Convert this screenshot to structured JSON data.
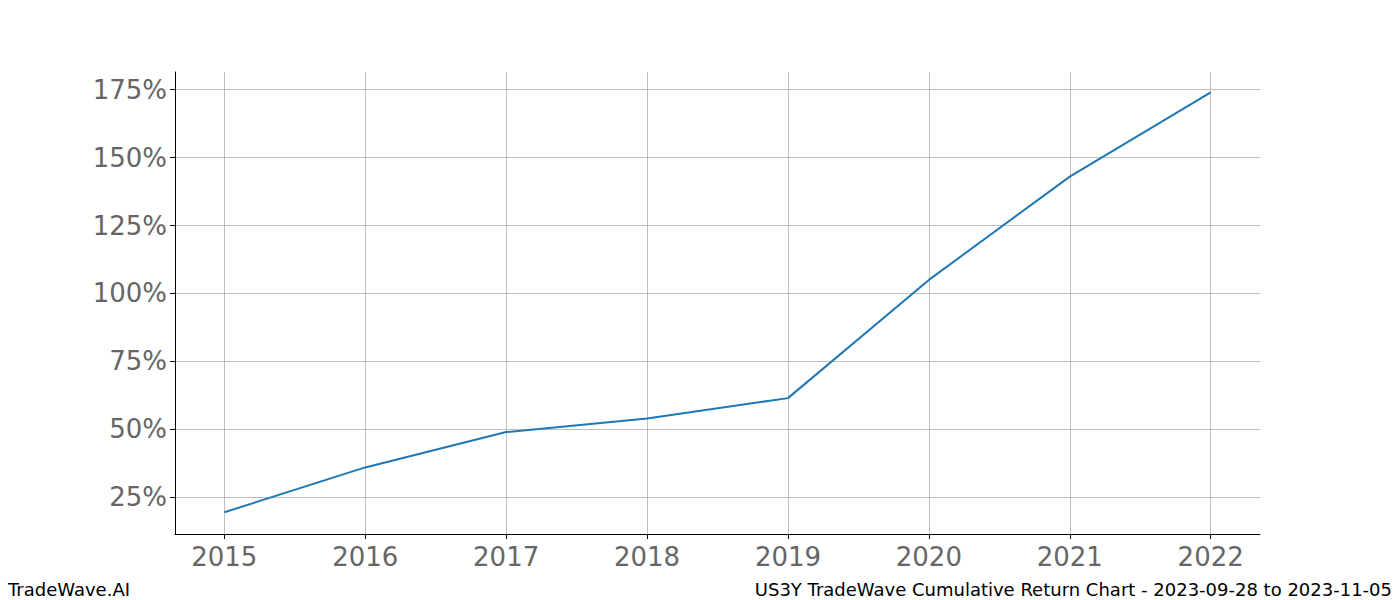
{
  "chart_data": {
    "type": "line",
    "x": [
      2015,
      2016,
      2017,
      2018,
      2019,
      2020,
      2021,
      2022
    ],
    "values": [
      19.5,
      36,
      49,
      54,
      61.5,
      105,
      143,
      174
    ],
    "color": "#1f77b4",
    "xlim": [
      2014.65,
      2022.35
    ],
    "xticks": [
      2015,
      2016,
      2017,
      2018,
      2019,
      2020,
      2021,
      2022
    ],
    "ylim": [
      11.5,
      181.5
    ],
    "yticks": [
      {
        "value": 25,
        "label": "25%"
      },
      {
        "value": 50,
        "label": "50%"
      },
      {
        "value": 75,
        "label": "75%"
      },
      {
        "value": 100,
        "label": "100%"
      },
      {
        "value": 125,
        "label": "125%"
      },
      {
        "value": 150,
        "label": "150%"
      },
      {
        "value": 175,
        "label": "175%"
      }
    ],
    "grid": true,
    "annotations": [
      "TradeWave.AI",
      "US3Y TradeWave Cumulative Return Chart - 2023-09-28 to 2023-11-05"
    ]
  }
}
